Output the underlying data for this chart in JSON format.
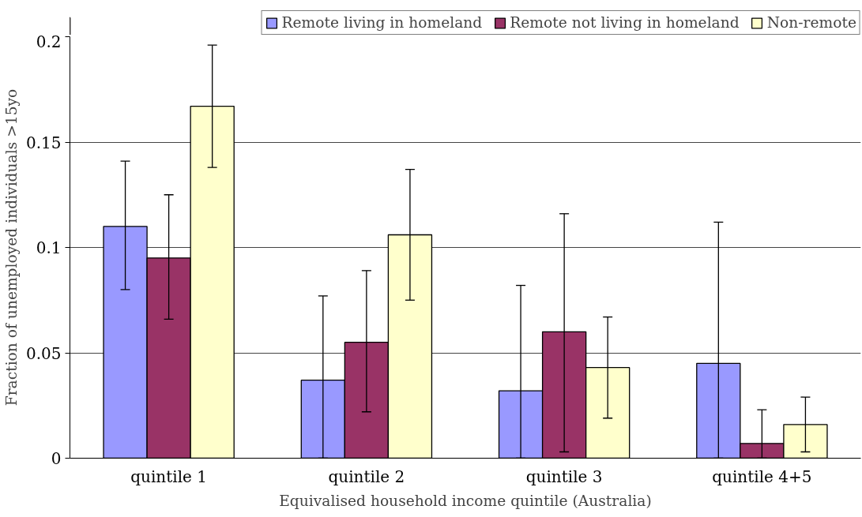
{
  "chart_data": {
    "type": "bar",
    "xlabel": "Equivalised household income quintile (Australia)",
    "ylabel": "Fraction of unemployed individuals >15yo",
    "categories": [
      "quintile 1",
      "quintile 2",
      "quintile 3",
      "quintile 4+5"
    ],
    "series": [
      {
        "name": "Remote living in homeland",
        "color": "#9999ff",
        "values": [
          0.11,
          0.037,
          0.032,
          0.045
        ],
        "errors": [
          [
            0.08,
            0.141
          ],
          [
            0,
            0.077
          ],
          [
            0,
            0.082
          ],
          [
            0,
            0.112
          ]
        ]
      },
      {
        "name": "Remote not living in homeland",
        "color": "#993366",
        "values": [
          0.095,
          0.055,
          0.06,
          0.007
        ],
        "errors": [
          [
            0.066,
            0.125
          ],
          [
            0.022,
            0.089
          ],
          [
            0.003,
            0.116
          ],
          [
            0,
            0.023
          ]
        ]
      },
      {
        "name": "Non-remote",
        "color": "#ffffcc",
        "values": [
          0.167,
          0.106,
          0.043,
          0.016
        ],
        "errors": [
          [
            0.138,
            0.196
          ],
          [
            0.075,
            0.137
          ],
          [
            0.019,
            0.067
          ],
          [
            0.003,
            0.029
          ]
        ]
      }
    ],
    "ylim": [
      0,
      0.2
    ],
    "yticks": [
      0,
      0.05,
      0.1,
      0.15,
      0.2
    ],
    "grid": "y",
    "legend": "top"
  }
}
